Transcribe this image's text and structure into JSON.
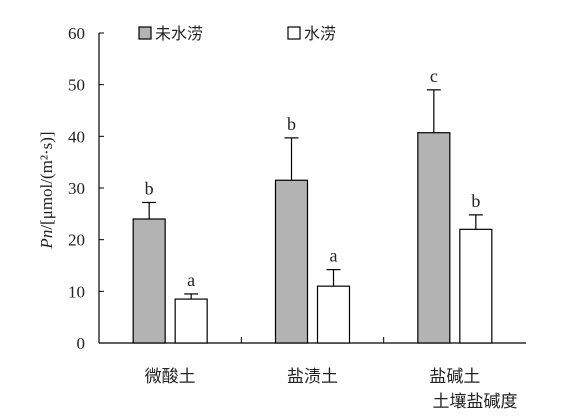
{
  "chart_data": {
    "type": "bar",
    "categories": [
      "微酸土",
      "盐渍土",
      "盐碱土"
    ],
    "xlabel": "土壤盐碱度",
    "ylabel": {
      "italic": "Pn",
      "unit": "/[μmol/(m²·s)]"
    },
    "ylim": [
      0,
      60
    ],
    "yticks": [
      0,
      10,
      20,
      30,
      40,
      50,
      60
    ],
    "legend_position": "top-left",
    "grid": false,
    "series": [
      {
        "name": "未水涝",
        "color": "#b3b3b3",
        "values": [
          24,
          31.5,
          40.7
        ],
        "errors": [
          3.2,
          8.2,
          8.3
        ],
        "labels": [
          "b",
          "b",
          "c"
        ]
      },
      {
        "name": "水涝",
        "color": "#ffffff",
        "values": [
          8.5,
          11,
          22
        ],
        "errors": [
          1.0,
          3.2,
          2.8
        ],
        "labels": [
          "a",
          "a",
          "b"
        ]
      }
    ]
  }
}
